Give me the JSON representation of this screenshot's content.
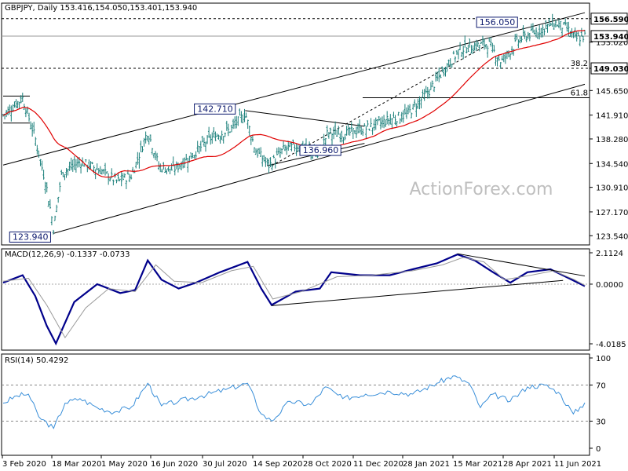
{
  "chart_data": [
    {
      "type": "candlestick",
      "title": "GBPJPY, Daily",
      "ohlc_readout": "153.416,154.050,153.401,153.940",
      "watermark": "ActionForex.com",
      "x_tick_labels": [
        "3 Feb 2020",
        "18 Mar 2020",
        "1 May 2020",
        "16 Jun 2020",
        "30 Jul 2020",
        "14 Sep 2020",
        "28 Oct 2020",
        "11 Dec 2020",
        "28 Jan 2021",
        "15 Mar 2021",
        "28 Apr 2021",
        "11 Jun 2021"
      ],
      "y_ticks": [
        123.54,
        127.17,
        130.91,
        134.54,
        138.28,
        141.91,
        145.65,
        149.03,
        153.02,
        156.59
      ],
      "ylim": [
        122.5,
        158.0
      ],
      "current_price": 153.94,
      "price_labels": [
        {
          "text": "123.940",
          "value": 123.94
        },
        {
          "text": "142.710",
          "value": 142.71
        },
        {
          "text": "136.960",
          "value": 136.96
        },
        {
          "text": "156.050",
          "value": 156.05
        }
      ],
      "horizontal_levels": [
        {
          "value": 156.59,
          "style": "dashed",
          "label": "156.590"
        },
        {
          "value": 153.94,
          "style": "solid-grey",
          "label": "153.940"
        },
        {
          "value": 149.03,
          "style": "dashed",
          "label": "149.030",
          "fib": "38.2"
        },
        {
          "value": 144.55,
          "style": "solid",
          "fib": "61.8"
        }
      ],
      "moving_average": {
        "color": "#e00000"
      },
      "close_path": [
        {
          "date": "2020-02-03",
          "close": 141.9
        },
        {
          "date": "2020-02-20",
          "close": 144.5
        },
        {
          "date": "2020-03-02",
          "close": 138.4
        },
        {
          "date": "2020-03-12",
          "close": 130.8
        },
        {
          "date": "2020-03-18",
          "close": 124.6
        },
        {
          "date": "2020-03-25",
          "close": 133.0
        },
        {
          "date": "2020-04-10",
          "close": 134.8
        },
        {
          "date": "2020-04-28",
          "close": 133.5
        },
        {
          "date": "2020-05-12",
          "close": 131.8
        },
        {
          "date": "2020-05-25",
          "close": 132.7
        },
        {
          "date": "2020-06-08",
          "close": 139.5
        },
        {
          "date": "2020-06-18",
          "close": 134.0
        },
        {
          "date": "2020-06-30",
          "close": 133.6
        },
        {
          "date": "2020-07-15",
          "close": 135.5
        },
        {
          "date": "2020-08-01",
          "close": 138.3
        },
        {
          "date": "2020-08-20",
          "close": 139.8
        },
        {
          "date": "2020-09-01",
          "close": 142.2
        },
        {
          "date": "2020-09-10",
          "close": 136.5
        },
        {
          "date": "2020-09-22",
          "close": 134.2
        },
        {
          "date": "2020-10-05",
          "close": 136.8
        },
        {
          "date": "2020-10-20",
          "close": 137.3
        },
        {
          "date": "2020-11-03",
          "close": 135.6
        },
        {
          "date": "2020-11-12",
          "close": 139.2
        },
        {
          "date": "2020-11-25",
          "close": 139.0
        },
        {
          "date": "2020-12-14",
          "close": 139.8
        },
        {
          "date": "2021-01-04",
          "close": 141.2
        },
        {
          "date": "2021-01-20",
          "close": 142.0
        },
        {
          "date": "2021-02-08",
          "close": 145.5
        },
        {
          "date": "2021-02-24",
          "close": 149.5
        },
        {
          "date": "2021-03-08",
          "close": 152.0
        },
        {
          "date": "2021-03-22",
          "close": 152.5
        },
        {
          "date": "2021-04-01",
          "close": 152.8
        },
        {
          "date": "2021-04-12",
          "close": 150.0
        },
        {
          "date": "2021-04-28",
          "close": 153.5
        },
        {
          "date": "2021-05-15",
          "close": 154.8
        },
        {
          "date": "2021-05-28",
          "close": 156.0
        },
        {
          "date": "2021-06-08",
          "close": 155.2
        },
        {
          "date": "2021-06-16",
          "close": 153.5
        },
        {
          "date": "2021-06-24",
          "close": 153.94
        }
      ]
    },
    {
      "type": "line",
      "title": "MACD(12,26,9) -0.1337 -0.0733",
      "y_ticks": [
        2.1124,
        0.0,
        -4.0185
      ],
      "ylim": [
        -4.0185,
        2.1124
      ],
      "series": [
        {
          "name": "MACD",
          "color": "#00008b",
          "points": [
            {
              "date": "2020-02-03",
              "value": 0.1
            },
            {
              "date": "2020-02-20",
              "value": 0.6
            },
            {
              "date": "2020-03-02",
              "value": -0.8
            },
            {
              "date": "2020-03-12",
              "value": -2.8
            },
            {
              "date": "2020-03-20",
              "value": -4.0
            },
            {
              "date": "2020-04-05",
              "value": -1.2
            },
            {
              "date": "2020-04-25",
              "value": 0.0
            },
            {
              "date": "2020-05-15",
              "value": -0.6
            },
            {
              "date": "2020-05-28",
              "value": -0.4
            },
            {
              "date": "2020-06-08",
              "value": 1.6
            },
            {
              "date": "2020-06-20",
              "value": 0.3
            },
            {
              "date": "2020-07-05",
              "value": -0.3
            },
            {
              "date": "2020-07-20",
              "value": 0.1
            },
            {
              "date": "2020-08-10",
              "value": 0.8
            },
            {
              "date": "2020-09-03",
              "value": 1.5
            },
            {
              "date": "2020-09-15",
              "value": -0.3
            },
            {
              "date": "2020-09-24",
              "value": -1.4
            },
            {
              "date": "2020-10-15",
              "value": -0.5
            },
            {
              "date": "2020-11-05",
              "value": -0.3
            },
            {
              "date": "2020-11-15",
              "value": 0.8
            },
            {
              "date": "2020-12-10",
              "value": 0.6
            },
            {
              "date": "2021-01-05",
              "value": 0.6
            },
            {
              "date": "2021-01-25",
              "value": 1.0
            },
            {
              "date": "2021-02-15",
              "value": 1.4
            },
            {
              "date": "2021-03-05",
              "value": 2.0
            },
            {
              "date": "2021-03-20",
              "value": 1.6
            },
            {
              "date": "2021-04-05",
              "value": 0.8
            },
            {
              "date": "2021-04-20",
              "value": 0.1
            },
            {
              "date": "2021-05-05",
              "value": 0.8
            },
            {
              "date": "2021-05-25",
              "value": 1.0
            },
            {
              "date": "2021-06-10",
              "value": 0.4
            },
            {
              "date": "2021-06-24",
              "value": -0.1337
            }
          ]
        },
        {
          "name": "Signal",
          "color": "#999999",
          "points": [
            {
              "date": "2020-02-03",
              "value": 0.2
            },
            {
              "date": "2020-02-25",
              "value": 0.4
            },
            {
              "date": "2020-03-12",
              "value": -1.4
            },
            {
              "date": "2020-03-28",
              "value": -3.6
            },
            {
              "date": "2020-04-15",
              "value": -1.6
            },
            {
              "date": "2020-05-05",
              "value": -0.3
            },
            {
              "date": "2020-05-28",
              "value": -0.5
            },
            {
              "date": "2020-06-15",
              "value": 1.3
            },
            {
              "date": "2020-07-01",
              "value": 0.2
            },
            {
              "date": "2020-07-25",
              "value": 0.1
            },
            {
              "date": "2020-08-20",
              "value": 0.9
            },
            {
              "date": "2020-09-08",
              "value": 1.2
            },
            {
              "date": "2020-09-25",
              "value": -1.0
            },
            {
              "date": "2020-10-20",
              "value": -0.5
            },
            {
              "date": "2020-11-20",
              "value": 0.5
            },
            {
              "date": "2020-12-20",
              "value": 0.6
            },
            {
              "date": "2021-01-25",
              "value": 0.9
            },
            {
              "date": "2021-02-20",
              "value": 1.3
            },
            {
              "date": "2021-03-10",
              "value": 1.8
            },
            {
              "date": "2021-03-28",
              "value": 1.5
            },
            {
              "date": "2021-04-15",
              "value": 0.3
            },
            {
              "date": "2021-05-08",
              "value": 0.6
            },
            {
              "date": "2021-05-28",
              "value": 0.9
            },
            {
              "date": "2021-06-15",
              "value": 0.3
            },
            {
              "date": "2021-06-24",
              "value": -0.0733
            }
          ]
        }
      ]
    },
    {
      "type": "line",
      "title": "RSI(14) 50.4292",
      "y_ticks": [
        100,
        70,
        30,
        0
      ],
      "ylim": [
        0,
        100
      ],
      "guide_levels": [
        70,
        30
      ],
      "series": [
        {
          "name": "RSI",
          "color": "#3a8fd9",
          "points": [
            {
              "date": "2020-02-03",
              "value": 50
            },
            {
              "date": "2020-02-15",
              "value": 58
            },
            {
              "date": "2020-02-25",
              "value": 60
            },
            {
              "date": "2020-03-05",
              "value": 35
            },
            {
              "date": "2020-03-18",
              "value": 22
            },
            {
              "date": "2020-03-28",
              "value": 50
            },
            {
              "date": "2020-04-10",
              "value": 55
            },
            {
              "date": "2020-04-25",
              "value": 45
            },
            {
              "date": "2020-05-10",
              "value": 40
            },
            {
              "date": "2020-05-25",
              "value": 46
            },
            {
              "date": "2020-06-08",
              "value": 72
            },
            {
              "date": "2020-06-20",
              "value": 47
            },
            {
              "date": "2020-07-05",
              "value": 52
            },
            {
              "date": "2020-07-25",
              "value": 58
            },
            {
              "date": "2020-08-15",
              "value": 65
            },
            {
              "date": "2020-09-03",
              "value": 72
            },
            {
              "date": "2020-09-15",
              "value": 38
            },
            {
              "date": "2020-09-24",
              "value": 30
            },
            {
              "date": "2020-10-10",
              "value": 52
            },
            {
              "date": "2020-10-28",
              "value": 48
            },
            {
              "date": "2020-11-10",
              "value": 68
            },
            {
              "date": "2020-11-25",
              "value": 55
            },
            {
              "date": "2020-12-15",
              "value": 60
            },
            {
              "date": "2021-01-05",
              "value": 63
            },
            {
              "date": "2021-01-25",
              "value": 60
            },
            {
              "date": "2021-02-15",
              "value": 72
            },
            {
              "date": "2021-03-01",
              "value": 80
            },
            {
              "date": "2021-03-15",
              "value": 72
            },
            {
              "date": "2021-03-25",
              "value": 45
            },
            {
              "date": "2021-04-05",
              "value": 60
            },
            {
              "date": "2021-04-20",
              "value": 52
            },
            {
              "date": "2021-05-05",
              "value": 68
            },
            {
              "date": "2021-05-20",
              "value": 70
            },
            {
              "date": "2021-06-01",
              "value": 62
            },
            {
              "date": "2021-06-14",
              "value": 38
            },
            {
              "date": "2021-06-24",
              "value": 50.43
            }
          ]
        }
      ]
    }
  ]
}
